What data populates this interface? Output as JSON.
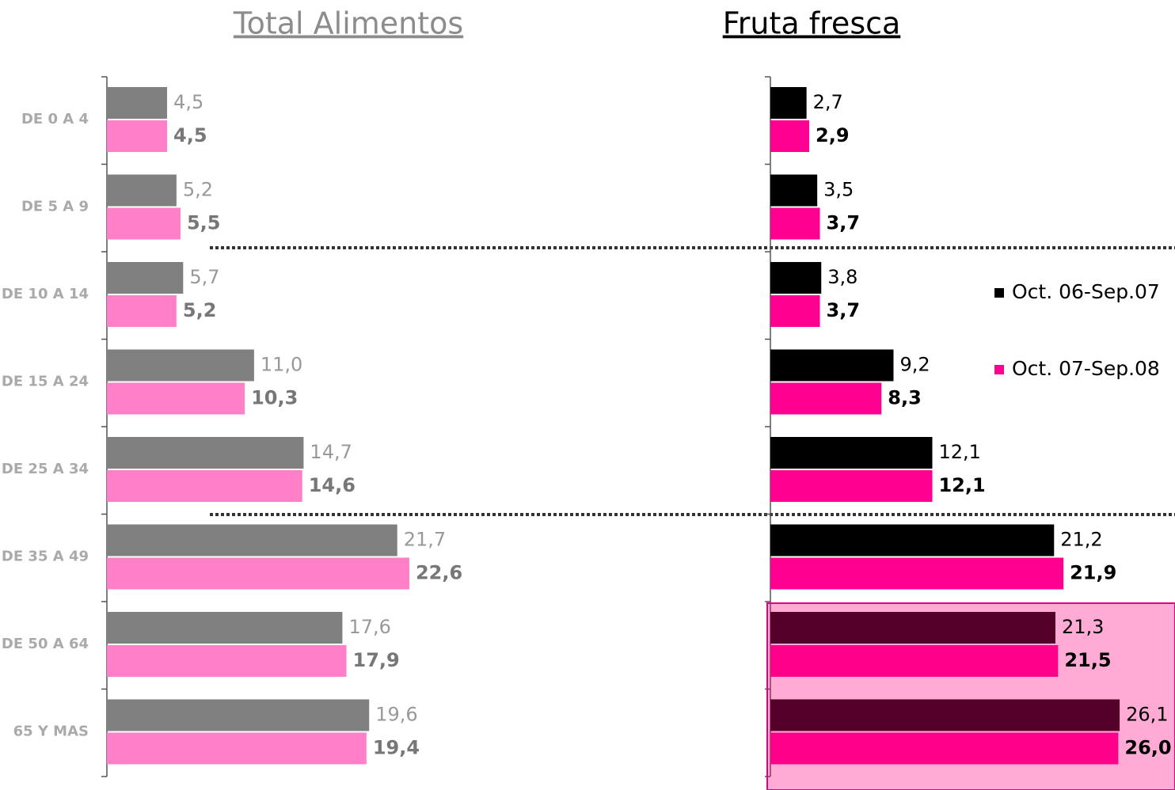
{
  "chart_data": [
    {
      "type": "bar",
      "orientation": "horizontal",
      "title": "Total Alimentos",
      "categories": [
        "DE 0 A 4",
        "DE 5 A 9",
        "DE 10 A 14",
        "DE 15 A 24",
        "DE 25 A 34",
        "DE 35 A 49",
        "DE 50 A 64",
        "65 Y MAS"
      ],
      "xlim": [
        0,
        30
      ],
      "series": [
        {
          "color": "#808080",
          "values": [
            4.5,
            5.2,
            5.7,
            11.0,
            14.7,
            21.7,
            17.6,
            19.6
          ],
          "value_labels": [
            "4,5",
            "5,2",
            "5,7",
            "11,0",
            "14,7",
            "21,7",
            "17,6",
            "19,6"
          ]
        },
        {
          "color": "#ff80c8",
          "values": [
            4.5,
            5.5,
            5.2,
            10.3,
            14.6,
            22.6,
            17.9,
            19.4
          ],
          "value_labels": [
            "4,5",
            "5,5",
            "5,2",
            "10,3",
            "14,6",
            "22,6",
            "17,9",
            "19,4"
          ]
        }
      ]
    },
    {
      "type": "bar",
      "orientation": "horizontal",
      "title": "Fruta fresca",
      "xlim": [
        0,
        30
      ],
      "series": [
        {
          "name": "Oct. 06-Sep.07",
          "color": "#000000",
          "values": [
            2.7,
            3.5,
            3.8,
            9.2,
            12.1,
            21.2,
            21.3,
            26.1
          ],
          "value_labels": [
            "2,7",
            "3,5",
            "3,8",
            "9,2",
            "12,1",
            "21,2",
            "21,3",
            "26,1"
          ]
        },
        {
          "name": "Oct. 07-Sep.08",
          "color": "#ff0090",
          "values": [
            2.9,
            3.7,
            3.7,
            8.3,
            12.1,
            21.9,
            21.5,
            26.0
          ],
          "value_labels": [
            "2,9",
            "3,7",
            "3,7",
            "8,3",
            "12,1",
            "21,9",
            "21,5",
            "26,0"
          ]
        }
      ]
    }
  ]
}
